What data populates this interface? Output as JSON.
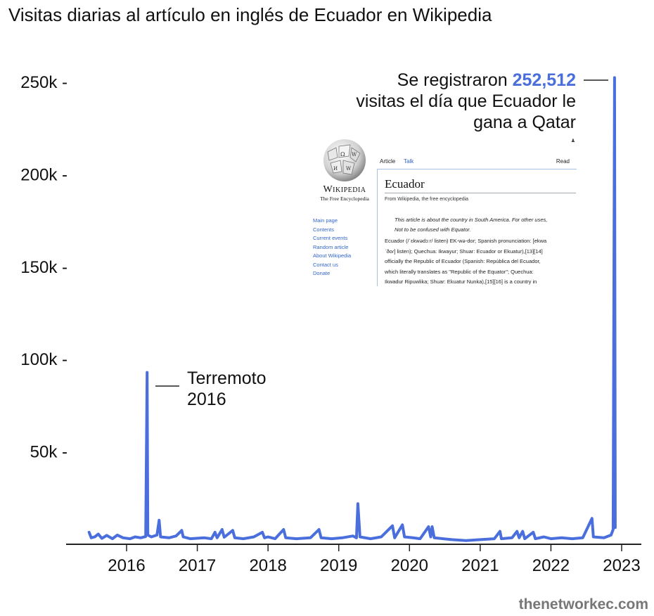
{
  "title": "Visitas diarias al artículo en inglés de Ecuador en Wikipedia",
  "watermark": "thenetworkec.com",
  "colors": {
    "line": "#4a6fdc",
    "text": "#111111",
    "highlight": "#4a6fdc"
  },
  "annotations": {
    "peak_prefix": "Se registraron",
    "peak_value": "252,512",
    "peak_line2": "visitas el día que Ecuador le",
    "peak_line3": "gana a Qatar",
    "quake_line1": "Terremoto",
    "quake_line2": "2016"
  },
  "wiki_screenshot": {
    "wordmark": "Wikipedia",
    "tagline": "The Free Encyclopedia",
    "nav": [
      "Main page",
      "Contents",
      "Current events",
      "Random article",
      "About Wikipedia",
      "Contact us",
      "Donate"
    ],
    "tab_article": "Article",
    "tab_talk": "Talk",
    "tab_read": "Read",
    "heading": "Ecuador",
    "from": "From Wikipedia, the free encyclopedia",
    "hatnote1": "This article is about the country in South America. For other uses,",
    "hatnote2": "Not to be confused with Equator.",
    "body1": "Ecuador (/ˈɛkwədɔːr/ listen) EK-wə-dor; Spanish pronunciation: [ekwa",
    "body2": "ˈðoɾ] listen); Quechua: Ikwayur; Shuar: Ecuador or Ekuatur),[13][14]",
    "body3": "officially the Republic of Ecuador (Spanish: República del Ecuador,",
    "body4": "which literally translates as \"Republic of the Equator\"; Quechua:",
    "body5": "Ikwadur Ripuwlika; Shuar: Ekuatur Nunka),[15][16] is a country in"
  },
  "chart_data": {
    "type": "line",
    "title": "Visitas diarias al artículo en inglés de Ecuador en Wikipedia",
    "xlabel": "",
    "ylabel": "",
    "x_range": [
      2015.45,
      2023.3
    ],
    "ylim": [
      0,
      260000
    ],
    "x_ticks": [
      2016,
      2017,
      2018,
      2019,
      2020,
      2021,
      2022,
      2023
    ],
    "x_tick_labels": [
      "2016",
      "2017",
      "2018",
      "2019",
      "2020",
      "2021",
      "2022",
      "2023"
    ],
    "y_ticks": [
      50000,
      100000,
      150000,
      200000,
      250000
    ],
    "y_tick_labels": [
      "50k -",
      "100k -",
      "150k -",
      "200k -",
      "250k -"
    ],
    "grid": false,
    "series": [
      {
        "values": [
          [
            2015.47,
            6500
          ],
          [
            2015.5,
            3500
          ],
          [
            2015.55,
            4000
          ],
          [
            2015.6,
            5500
          ],
          [
            2015.65,
            3200
          ],
          [
            2015.72,
            4800
          ],
          [
            2015.8,
            3000
          ],
          [
            2015.87,
            5000
          ],
          [
            2015.95,
            3500
          ],
          [
            2016.05,
            3000
          ],
          [
            2016.12,
            4000
          ],
          [
            2016.2,
            3500
          ],
          [
            2016.27,
            4200
          ],
          [
            2016.29,
            93000
          ],
          [
            2016.3,
            5000
          ],
          [
            2016.35,
            4000
          ],
          [
            2016.43,
            5000
          ],
          [
            2016.46,
            13000
          ],
          [
            2016.48,
            4000
          ],
          [
            2016.6,
            3500
          ],
          [
            2016.7,
            4500
          ],
          [
            2016.78,
            7500
          ],
          [
            2016.8,
            4000
          ],
          [
            2016.9,
            3000
          ],
          [
            2017.1,
            3500
          ],
          [
            2017.2,
            3000
          ],
          [
            2017.25,
            6500
          ],
          [
            2017.28,
            3500
          ],
          [
            2017.35,
            8000
          ],
          [
            2017.38,
            3800
          ],
          [
            2017.5,
            7500
          ],
          [
            2017.53,
            3500
          ],
          [
            2017.65,
            3000
          ],
          [
            2017.8,
            4000
          ],
          [
            2017.92,
            6500
          ],
          [
            2017.95,
            3500
          ],
          [
            2018.0,
            4000
          ],
          [
            2018.1,
            3000
          ],
          [
            2018.22,
            8000
          ],
          [
            2018.25,
            3500
          ],
          [
            2018.4,
            3000
          ],
          [
            2018.6,
            3500
          ],
          [
            2018.72,
            8000
          ],
          [
            2018.75,
            3500
          ],
          [
            2018.9,
            3000
          ],
          [
            2019.05,
            3500
          ],
          [
            2019.2,
            4500
          ],
          [
            2019.25,
            3500
          ],
          [
            2019.27,
            22000
          ],
          [
            2019.3,
            4000
          ],
          [
            2019.45,
            3000
          ],
          [
            2019.6,
            4000
          ],
          [
            2019.76,
            10000
          ],
          [
            2019.79,
            3500
          ],
          [
            2019.9,
            10500
          ],
          [
            2019.93,
            4000
          ],
          [
            2020.05,
            3500
          ],
          [
            2020.15,
            3000
          ],
          [
            2020.27,
            9500
          ],
          [
            2020.3,
            4000
          ],
          [
            2020.32,
            9500
          ],
          [
            2020.35,
            3500
          ],
          [
            2020.6,
            2500
          ],
          [
            2020.8,
            2000
          ],
          [
            2021.0,
            2500
          ],
          [
            2021.2,
            3000
          ],
          [
            2021.28,
            7000
          ],
          [
            2021.3,
            3000
          ],
          [
            2021.45,
            3500
          ],
          [
            2021.52,
            7000
          ],
          [
            2021.55,
            3500
          ],
          [
            2021.6,
            7000
          ],
          [
            2021.63,
            3000
          ],
          [
            2021.75,
            6500
          ],
          [
            2021.78,
            3000
          ],
          [
            2021.9,
            4000
          ],
          [
            2022.0,
            3000
          ],
          [
            2022.15,
            3500
          ],
          [
            2022.3,
            3000
          ],
          [
            2022.45,
            3500
          ],
          [
            2022.58,
            14000
          ],
          [
            2022.6,
            4000
          ],
          [
            2022.75,
            3500
          ],
          [
            2022.85,
            5000
          ],
          [
            2022.88,
            8000
          ],
          [
            2022.9,
            252512
          ],
          [
            2022.91,
            9000
          ]
        ]
      }
    ],
    "annotations": [
      {
        "x": 2016.29,
        "y": 93000,
        "text": "Terremoto 2016"
      },
      {
        "x": 2022.9,
        "y": 252512,
        "text": "Se registraron 252,512 visitas el día que Ecuador le gana a Qatar"
      }
    ]
  }
}
